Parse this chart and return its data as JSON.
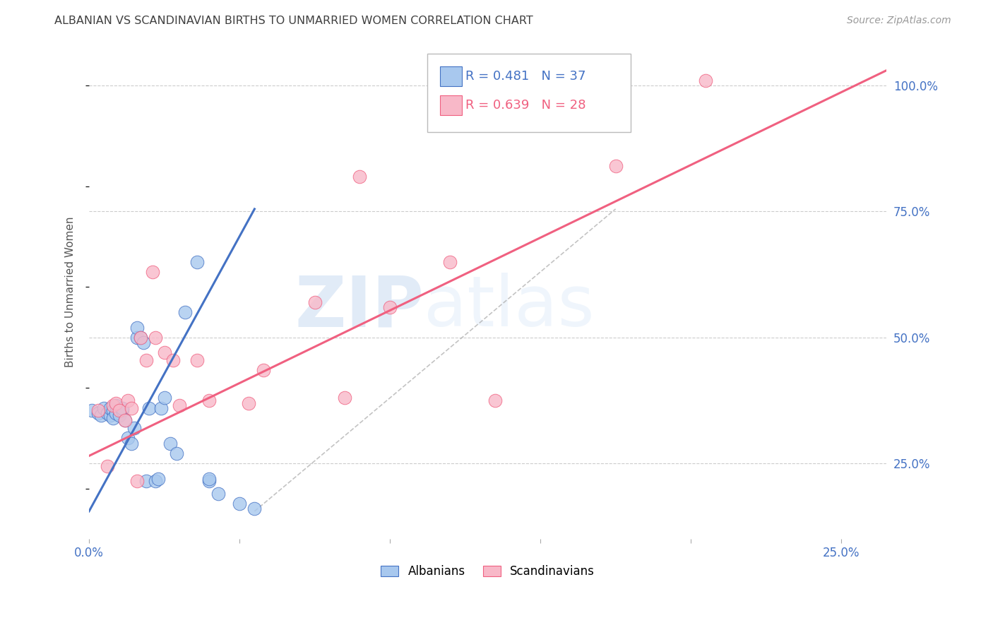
{
  "title": "ALBANIAN VS SCANDINAVIAN BIRTHS TO UNMARRIED WOMEN CORRELATION CHART",
  "source": "Source: ZipAtlas.com",
  "ylabel": "Births to Unmarried Women",
  "watermark_zip": "ZIP",
  "watermark_atlas": "atlas",
  "albanian_R": 0.481,
  "albanian_N": 37,
  "scandinavian_R": 0.639,
  "scandinavian_N": 28,
  "albanian_color": "#a8c8ee",
  "scandinavian_color": "#f8b8c8",
  "albanian_line_color": "#4472c4",
  "scandinavian_line_color": "#f06080",
  "grid_color": "#cccccc",
  "title_color": "#404040",
  "tick_color": "#4472c4",
  "xlim": [
    0.0,
    0.265
  ],
  "ylim": [
    0.1,
    1.08
  ],
  "albanian_scatter_x": [
    0.001,
    0.003,
    0.004,
    0.005,
    0.006,
    0.007,
    0.007,
    0.008,
    0.008,
    0.009,
    0.009,
    0.01,
    0.011,
    0.011,
    0.012,
    0.013,
    0.014,
    0.015,
    0.016,
    0.016,
    0.017,
    0.018,
    0.019,
    0.02,
    0.022,
    0.023,
    0.024,
    0.025,
    0.027,
    0.029,
    0.032,
    0.036,
    0.04,
    0.04,
    0.043,
    0.05,
    0.055
  ],
  "albanian_scatter_y": [
    0.355,
    0.35,
    0.345,
    0.36,
    0.35,
    0.345,
    0.36,
    0.355,
    0.34,
    0.35,
    0.365,
    0.345,
    0.355,
    0.36,
    0.335,
    0.3,
    0.29,
    0.32,
    0.5,
    0.52,
    0.5,
    0.49,
    0.215,
    0.36,
    0.215,
    0.22,
    0.36,
    0.38,
    0.29,
    0.27,
    0.55,
    0.65,
    0.215,
    0.22,
    0.19,
    0.17,
    0.16
  ],
  "scandinavian_scatter_x": [
    0.003,
    0.006,
    0.008,
    0.009,
    0.01,
    0.012,
    0.013,
    0.014,
    0.016,
    0.017,
    0.019,
    0.021,
    0.022,
    0.025,
    0.028,
    0.03,
    0.036,
    0.04,
    0.053,
    0.058,
    0.075,
    0.085,
    0.09,
    0.1,
    0.12,
    0.135,
    0.175,
    0.205
  ],
  "scandinavian_scatter_y": [
    0.355,
    0.245,
    0.365,
    0.37,
    0.355,
    0.335,
    0.375,
    0.36,
    0.215,
    0.5,
    0.455,
    0.63,
    0.5,
    0.47,
    0.455,
    0.365,
    0.455,
    0.375,
    0.37,
    0.435,
    0.57,
    0.38,
    0.82,
    0.56,
    0.65,
    0.375,
    0.84,
    1.01
  ],
  "albanian_line_x": [
    0.0,
    0.055
  ],
  "albanian_line_y": [
    0.155,
    0.755
  ],
  "scandinavian_line_x": [
    0.0,
    0.265
  ],
  "scandinavian_line_y": [
    0.265,
    1.03
  ],
  "ref_line_x": [
    0.055,
    0.175
  ],
  "ref_line_y": [
    0.155,
    0.755
  ],
  "marker_size": 180
}
